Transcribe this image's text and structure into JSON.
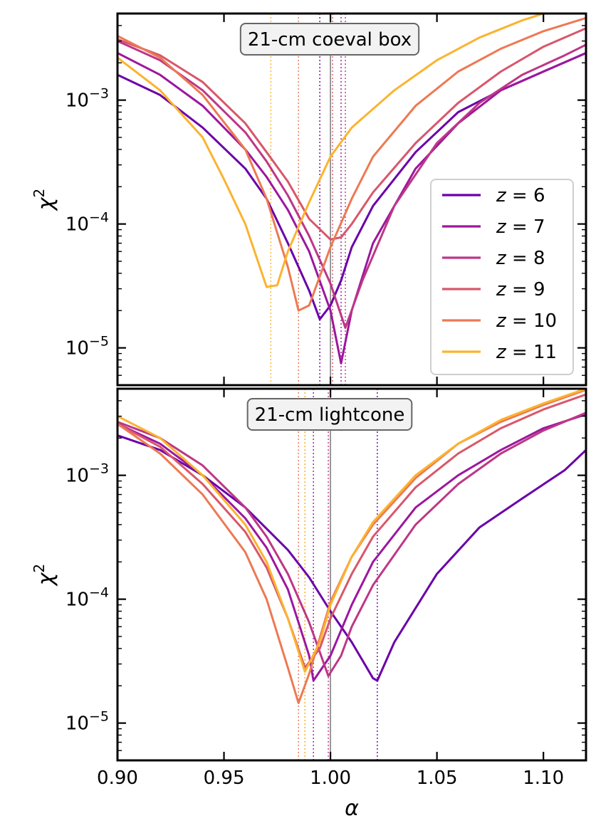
{
  "chart_data": [
    {
      "type": "line",
      "title": "21-cm coeval box",
      "xlabel": "α",
      "ylabel": "χ²",
      "xlim": [
        0.9,
        1.12
      ],
      "ylim": [
        5e-06,
        0.005
      ],
      "yscale": "log",
      "legend": "right",
      "ref_line": 1.0,
      "series": [
        {
          "name": "z = 6",
          "color": "#6a00a8",
          "min_x": 0.995,
          "x": [
            0.9,
            0.92,
            0.94,
            0.96,
            0.97,
            0.98,
            0.99,
            0.995,
            1.0,
            1.005,
            1.01,
            1.02,
            1.04,
            1.06,
            1.08,
            1.1,
            1.12
          ],
          "y": [
            0.0016,
            0.0011,
            0.0006,
            0.00028,
            0.00016,
            7e-05,
            2.9e-05,
            1.7e-05,
            2.2e-05,
            3.5e-05,
            6.5e-05,
            0.00014,
            0.00038,
            0.0008,
            0.0012,
            0.0017,
            0.0024
          ]
        },
        {
          "name": "z = 7",
          "color": "#9c179e",
          "min_x": 1.005,
          "x": [
            0.9,
            0.92,
            0.94,
            0.96,
            0.97,
            0.98,
            0.99,
            1.0,
            1.005,
            1.01,
            1.02,
            1.04,
            1.06,
            1.08,
            1.1,
            1.12
          ],
          "y": [
            0.0024,
            0.0016,
            0.0009,
            0.0004,
            0.00024,
            0.00013,
            6e-05,
            2e-05,
            7.5e-06,
            2e-05,
            7e-05,
            0.00028,
            0.00065,
            0.0012,
            0.0017,
            0.0024
          ]
        },
        {
          "name": "z = 8",
          "color": "#bd3786",
          "min_x": 1.007,
          "x": [
            0.9,
            0.92,
            0.94,
            0.96,
            0.97,
            0.98,
            0.99,
            1.0,
            1.007,
            1.015,
            1.03,
            1.05,
            1.07,
            1.09,
            1.11,
            1.12
          ],
          "y": [
            0.003,
            0.0021,
            0.0012,
            0.00055,
            0.00032,
            0.00017,
            8e-05,
            3.3e-05,
            1.45e-05,
            3.5e-05,
            0.00014,
            0.00045,
            0.00095,
            0.0016,
            0.0023,
            0.0028
          ]
        },
        {
          "name": "z = 9",
          "color": "#d8576b",
          "min_x": 1.001,
          "x": [
            0.9,
            0.92,
            0.94,
            0.96,
            0.97,
            0.98,
            0.99,
            1.0,
            1.005,
            1.01,
            1.02,
            1.04,
            1.06,
            1.08,
            1.1,
            1.12
          ],
          "y": [
            0.0031,
            0.0023,
            0.0014,
            0.00065,
            0.00038,
            0.00022,
            0.00011,
            7.5e-05,
            7.8e-05,
            0.0001,
            0.00018,
            0.00045,
            0.00095,
            0.0017,
            0.0027,
            0.0038
          ]
        },
        {
          "name": "z = 10",
          "color": "#ed7953",
          "min_x": 0.985,
          "x": [
            0.9,
            0.92,
            0.94,
            0.96,
            0.97,
            0.98,
            0.985,
            0.99,
            1.0,
            1.01,
            1.02,
            1.04,
            1.06,
            1.08,
            1.1,
            1.12
          ],
          "y": [
            0.0033,
            0.0022,
            0.0011,
            0.0004,
            0.00016,
            4.5e-05,
            2e-05,
            2.2e-05,
            6.5e-05,
            0.00016,
            0.00035,
            0.0009,
            0.0017,
            0.0026,
            0.0036,
            0.0046
          ]
        },
        {
          "name": "z = 11",
          "color": "#fbb32f",
          "min_x": 0.972,
          "x": [
            0.9,
            0.92,
            0.94,
            0.95,
            0.96,
            0.97,
            0.975,
            0.98,
            0.99,
            1.0,
            1.01,
            1.03,
            1.05,
            1.07,
            1.09,
            1.1
          ],
          "y": [
            0.0022,
            0.0012,
            0.0005,
            0.00023,
            0.0001,
            3.1e-05,
            3.2e-05,
            6e-05,
            0.00015,
            0.00035,
            0.0006,
            0.0012,
            0.0021,
            0.0032,
            0.0044,
            0.005
          ]
        }
      ]
    },
    {
      "type": "line",
      "title": "21-cm lightcone",
      "xlabel": "α",
      "ylabel": "χ²",
      "xlim": [
        0.9,
        1.12
      ],
      "ylim": [
        5e-06,
        0.005
      ],
      "yscale": "log",
      "ref_line": 1.0,
      "series": [
        {
          "name": "z = 6",
          "color": "#6a00a8",
          "min_x": 1.022,
          "x": [
            0.9,
            0.92,
            0.94,
            0.96,
            0.98,
            0.99,
            1.0,
            1.01,
            1.02,
            1.022,
            1.03,
            1.05,
            1.07,
            1.09,
            1.11,
            1.12
          ],
          "y": [
            0.0021,
            0.0016,
            0.001,
            0.00055,
            0.00025,
            0.00015,
            8e-05,
            4.5e-05,
            2.3e-05,
            2.2e-05,
            4.5e-05,
            0.00016,
            0.00038,
            0.00065,
            0.0011,
            0.0016
          ]
        },
        {
          "name": "z = 7",
          "color": "#9c179e",
          "min_x": 0.992,
          "x": [
            0.9,
            0.92,
            0.94,
            0.96,
            0.97,
            0.98,
            0.99,
            0.992,
            1.0,
            1.01,
            1.02,
            1.04,
            1.06,
            1.08,
            1.1,
            1.12
          ],
          "y": [
            0.0026,
            0.0018,
            0.001,
            0.00045,
            0.00026,
            0.00012,
            3.5e-05,
            2.2e-05,
            3.5e-05,
            9e-05,
            0.0002,
            0.00055,
            0.001,
            0.0016,
            0.0024,
            0.0031
          ]
        },
        {
          "name": "z = 8",
          "color": "#bd3786",
          "min_x": 0.999,
          "x": [
            0.9,
            0.92,
            0.94,
            0.96,
            0.97,
            0.98,
            0.99,
            0.999,
            1.005,
            1.01,
            1.02,
            1.04,
            1.06,
            1.08,
            1.1,
            1.12
          ],
          "y": [
            0.0027,
            0.002,
            0.0012,
            0.00055,
            0.00032,
            0.00016,
            6.5e-05,
            2.4e-05,
            3.5e-05,
            6e-05,
            0.00013,
            0.0004,
            0.00085,
            0.0015,
            0.0023,
            0.0032
          ]
        },
        {
          "name": "z = 9",
          "color": "#d8576b",
          "min_x": 0.988,
          "x": [
            0.9,
            0.92,
            0.94,
            0.96,
            0.97,
            0.98,
            0.988,
            0.995,
            1.0,
            1.01,
            1.02,
            1.04,
            1.06,
            1.08,
            1.1,
            1.12
          ],
          "y": [
            0.0026,
            0.0017,
            0.00085,
            0.00035,
            0.00018,
            7e-05,
            2.8e-05,
            4e-05,
            7e-05,
            0.00016,
            0.00032,
            0.0008,
            0.0015,
            0.0024,
            0.0034,
            0.0045
          ]
        },
        {
          "name": "z = 10",
          "color": "#ed7953",
          "min_x": 0.985,
          "x": [
            0.9,
            0.92,
            0.94,
            0.96,
            0.97,
            0.98,
            0.985,
            0.99,
            1.0,
            1.01,
            1.02,
            1.04,
            1.06,
            1.08,
            1.1,
            1.12
          ],
          "y": [
            0.0026,
            0.0015,
            0.0007,
            0.00024,
            0.0001,
            2.8e-05,
            1.45e-05,
            2.5e-05,
            9.5e-05,
            0.00022,
            0.0004,
            0.00095,
            0.0018,
            0.0027,
            0.0037,
            0.0049
          ]
        },
        {
          "name": "z = 11",
          "color": "#fbb32f",
          "min_x": 0.988,
          "x": [
            0.9,
            0.92,
            0.94,
            0.96,
            0.97,
            0.98,
            0.988,
            0.995,
            1.0,
            1.01,
            1.02,
            1.04,
            1.06,
            1.08,
            1.1,
            1.12
          ],
          "y": [
            0.003,
            0.002,
            0.001,
            0.0004,
            0.0002,
            7e-05,
            2.6e-05,
            4.5e-05,
            9e-05,
            0.00022,
            0.00042,
            0.001,
            0.0018,
            0.0028,
            0.0038,
            0.005
          ]
        }
      ]
    }
  ],
  "x_ticks": [
    {
      "value": 0.9,
      "label": "0.90"
    },
    {
      "value": 0.95,
      "label": "0.95"
    },
    {
      "value": 1.0,
      "label": "1.00"
    },
    {
      "value": 1.05,
      "label": "1.05"
    },
    {
      "value": 1.1,
      "label": "1.10"
    }
  ],
  "y_ticks": [
    {
      "base": "10",
      "exp": "−3",
      "value": 0.001
    },
    {
      "base": "10",
      "exp": "−4",
      "value": 0.0001
    },
    {
      "base": "10",
      "exp": "−5",
      "value": 1e-05
    }
  ],
  "labels": {
    "ylabel_base": "χ",
    "ylabel_exp": "2",
    "xlabel": "α",
    "legend_prefix": "z",
    "legend_values": [
      "6",
      "7",
      "8",
      "9",
      "10",
      "11"
    ]
  }
}
